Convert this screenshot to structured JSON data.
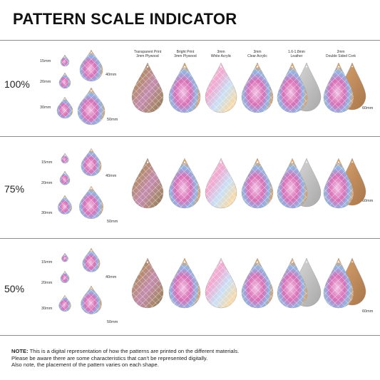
{
  "title": "PATTERN SCALE INDICATOR",
  "materials": [
    {
      "line1": "Transparent Print",
      "line2": "3mm Plywood"
    },
    {
      "line1": "Bright Print",
      "line2": "3mm Plywood"
    },
    {
      "line1": "3mm",
      "line2": "White Acrylic"
    },
    {
      "line1": "3mm",
      "line2": "Clear Acrylic"
    },
    {
      "line1": "1.6-1.8mm",
      "line2": "Leather"
    },
    {
      "line1": "2mm",
      "line2": "Double Sided Cork"
    }
  ],
  "rows": [
    {
      "scale": "100%",
      "s15": "15mm",
      "s20": "20mm",
      "s30": "30mm",
      "s40": "40mm",
      "s50": "50mm",
      "s60": "60mm"
    },
    {
      "scale": "75%",
      "s15": "15mm",
      "s20": "20mm",
      "s30": "30mm",
      "s40": "40mm",
      "s50": "50mm",
      "s60": "60mm"
    },
    {
      "scale": "50%",
      "s15": "15mm",
      "s20": "20mm",
      "s30": "30mm",
      "s40": "40mm",
      "s50": "50mm",
      "s60": "60mm"
    }
  ],
  "note": {
    "label": "NOTE:",
    "line1": " This is a digital representation of how the patterns are printed on the different materials.",
    "line2": "Please be aware there are some characteristics that can't be represented digitally.",
    "line3": "Also note, the placement of the pattern varies on each shape."
  },
  "colors": {
    "rule": "#8c8c8c",
    "wood": "#b8855a",
    "cork": "#c9925c",
    "leather": "#c8c8c8",
    "pink": "#d96fb6",
    "blue": "#7fb6e8",
    "orange": "#e8a25a"
  }
}
